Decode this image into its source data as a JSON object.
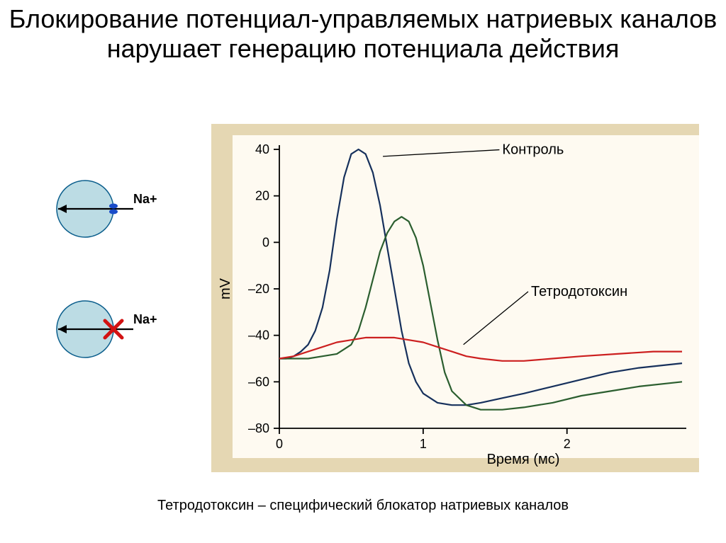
{
  "title": "Блокирование потенциал-управляемых натриевых каналов нарушает генерацию потенциала действия",
  "caption": "Тетродотоксин – специфический блокатор натриевых каналов",
  "chart": {
    "type": "line",
    "outer_background": "#e5d7b3",
    "panel_background": "#fefaf1",
    "axis_color": "#000000",
    "tick_font_size": 18,
    "label_font_size": 20,
    "callout_font_size": 20,
    "ylabel": "mV",
    "xlabel": "Время (мс)",
    "xlim": [
      0,
      2.8
    ],
    "ylim": [
      -80,
      40
    ],
    "xticks": [
      0,
      1,
      2
    ],
    "yticks": [
      -80,
      -60,
      -40,
      -20,
      0,
      20,
      40
    ],
    "line_width": 2.2,
    "series": [
      {
        "name": "Контроль",
        "color": "#16305c",
        "callout_text": "Контроль",
        "callout_point": [
          0.72,
          37
        ],
        "callout_label_pos": [
          1.55,
          38
        ],
        "points": [
          [
            0.0,
            -50
          ],
          [
            0.05,
            -50
          ],
          [
            0.1,
            -49
          ],
          [
            0.15,
            -47
          ],
          [
            0.2,
            -44
          ],
          [
            0.25,
            -38
          ],
          [
            0.3,
            -28
          ],
          [
            0.35,
            -12
          ],
          [
            0.4,
            10
          ],
          [
            0.45,
            28
          ],
          [
            0.5,
            38
          ],
          [
            0.55,
            40
          ],
          [
            0.6,
            38
          ],
          [
            0.65,
            30
          ],
          [
            0.7,
            16
          ],
          [
            0.75,
            -2
          ],
          [
            0.8,
            -20
          ],
          [
            0.85,
            -38
          ],
          [
            0.9,
            -52
          ],
          [
            0.95,
            -60
          ],
          [
            1.0,
            -65
          ],
          [
            1.1,
            -69
          ],
          [
            1.2,
            -70
          ],
          [
            1.3,
            -70
          ],
          [
            1.4,
            -69
          ],
          [
            1.55,
            -67
          ],
          [
            1.7,
            -65
          ],
          [
            1.9,
            -62
          ],
          [
            2.1,
            -59
          ],
          [
            2.3,
            -56
          ],
          [
            2.5,
            -54
          ],
          [
            2.8,
            -52
          ]
        ]
      },
      {
        "name": "green",
        "color": "#2b5e2f",
        "points": [
          [
            0.0,
            -50
          ],
          [
            0.1,
            -50
          ],
          [
            0.2,
            -50
          ],
          [
            0.3,
            -49
          ],
          [
            0.4,
            -48
          ],
          [
            0.5,
            -44
          ],
          [
            0.55,
            -38
          ],
          [
            0.6,
            -28
          ],
          [
            0.65,
            -16
          ],
          [
            0.7,
            -4
          ],
          [
            0.75,
            4
          ],
          [
            0.8,
            9
          ],
          [
            0.85,
            11
          ],
          [
            0.9,
            9
          ],
          [
            0.95,
            2
          ],
          [
            1.0,
            -10
          ],
          [
            1.05,
            -26
          ],
          [
            1.1,
            -42
          ],
          [
            1.15,
            -56
          ],
          [
            1.2,
            -64
          ],
          [
            1.3,
            -70
          ],
          [
            1.4,
            -72
          ],
          [
            1.55,
            -72
          ],
          [
            1.7,
            -71
          ],
          [
            1.9,
            -69
          ],
          [
            2.1,
            -66
          ],
          [
            2.3,
            -64
          ],
          [
            2.5,
            -62
          ],
          [
            2.8,
            -60
          ]
        ]
      },
      {
        "name": "Тетродотоксин",
        "color": "#cc1f1f",
        "callout_text": "Тетродотоксин",
        "callout_point": [
          1.28,
          -44
        ],
        "callout_label_pos": [
          1.75,
          -23
        ],
        "points": [
          [
            0.0,
            -50
          ],
          [
            0.1,
            -49
          ],
          [
            0.2,
            -47
          ],
          [
            0.3,
            -45
          ],
          [
            0.4,
            -43
          ],
          [
            0.5,
            -42
          ],
          [
            0.6,
            -41
          ],
          [
            0.7,
            -41
          ],
          [
            0.8,
            -41
          ],
          [
            0.9,
            -42
          ],
          [
            1.0,
            -43
          ],
          [
            1.1,
            -45
          ],
          [
            1.2,
            -47
          ],
          [
            1.3,
            -49
          ],
          [
            1.4,
            -50
          ],
          [
            1.55,
            -51
          ],
          [
            1.7,
            -51
          ],
          [
            1.9,
            -50
          ],
          [
            2.1,
            -49
          ],
          [
            2.35,
            -48
          ],
          [
            2.6,
            -47
          ],
          [
            2.8,
            -47
          ]
        ]
      }
    ]
  },
  "side_diagrams": [
    {
      "na_label": "Na+",
      "cell_fill": "#bcdce4",
      "cell_stroke": "#0b5e8c",
      "arrow_color": "#000000",
      "channel_open": true,
      "channel_color": "#1a4cc9"
    },
    {
      "na_label": "Na+",
      "cell_fill": "#bcdce4",
      "cell_stroke": "#0b5e8c",
      "arrow_color": "#000000",
      "channel_open": false,
      "block_color": "#d21212"
    }
  ]
}
